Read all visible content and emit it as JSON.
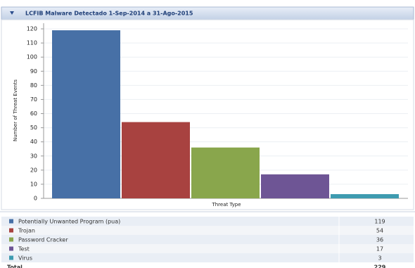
{
  "chart_data": {
    "type": "bar",
    "title": "LCFIB Malware Detectado 1-Sep-2014 a 31-Ago-2015",
    "x_label": "Threat Type",
    "y_label": "Number of Threat Events",
    "categories": [
      "Potentially Unwanted Program (pua)",
      "Trojan",
      "Password Cracker",
      "Test",
      "Virus"
    ],
    "values": [
      119,
      54,
      36,
      17,
      3
    ],
    "colors": [
      "#4770a6",
      "#a84240",
      "#89a64c",
      "#6e5595",
      "#3e9bb0"
    ],
    "ylim": [
      0,
      124
    ],
    "yticks": [
      0,
      10,
      20,
      30,
      40,
      50,
      60,
      70,
      80,
      90,
      100,
      110,
      120
    ],
    "grid": true,
    "total_label": "Total",
    "total": 229
  }
}
